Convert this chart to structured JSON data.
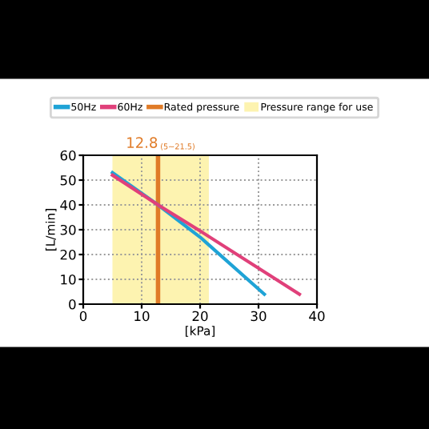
{
  "chart_data": {
    "type": "line",
    "xlabel": "[kPa]",
    "ylabel": "[L/min]",
    "series": [
      {
        "name": "50Hz",
        "color": "#1fa3d6",
        "x": [
          5,
          12.8,
          20,
          31
        ],
        "values": [
          53,
          40,
          27,
          4
        ]
      },
      {
        "name": "60Hz",
        "color": "#e0407a",
        "x": [
          5,
          12.8,
          20,
          37
        ],
        "values": [
          52,
          40,
          29.5,
          4
        ]
      }
    ],
    "ref_lines": [
      {
        "axis": "x",
        "value": 12.8,
        "label": "Rated pressure",
        "color": "#e07b27"
      }
    ],
    "bands": [
      {
        "axis": "x",
        "from": 5,
        "to": 21.5,
        "label": "Pressure range for use",
        "color": "#fdf3b0"
      }
    ],
    "annotations": [
      {
        "text": "12.8",
        "x": 12.8,
        "y": 60
      },
      {
        "text": "(5~21.5)",
        "x": 12.8,
        "y": 60
      }
    ],
    "xlim": [
      0,
      40
    ],
    "xticks": [
      0,
      10,
      20,
      30,
      40
    ],
    "ylim": [
      0,
      60
    ],
    "yticks": [
      0,
      10,
      20,
      30,
      40,
      50,
      60
    ],
    "grid": true,
    "legend": "top",
    "marker": "none",
    "line_style": "solid"
  }
}
